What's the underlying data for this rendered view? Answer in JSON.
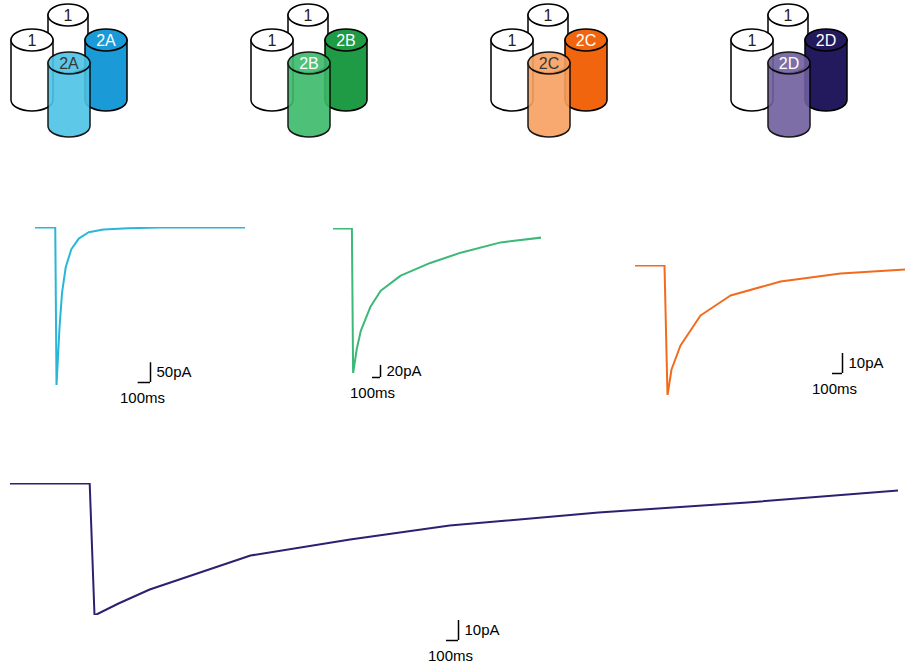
{
  "receptors": [
    {
      "subunits": [
        {
          "label": "1",
          "color": "#ffffff"
        },
        {
          "label": "1",
          "color": "#ffffff"
        },
        {
          "label": "2A",
          "color": "#1a9ad6"
        },
        {
          "label": "2A",
          "color": "#4cc3e6"
        }
      ]
    },
    {
      "subunits": [
        {
          "label": "1",
          "color": "#ffffff"
        },
        {
          "label": "1",
          "color": "#ffffff"
        },
        {
          "label": "2B",
          "color": "#1f9a45"
        },
        {
          "label": "2B",
          "color": "#3dba6a"
        }
      ]
    },
    {
      "subunits": [
        {
          "label": "1",
          "color": "#ffffff"
        },
        {
          "label": "1",
          "color": "#ffffff"
        },
        {
          "label": "2C",
          "color": "#f2650f"
        },
        {
          "label": "2C",
          "color": "#f7a061"
        }
      ]
    },
    {
      "subunits": [
        {
          "label": "1",
          "color": "#ffffff"
        },
        {
          "label": "1",
          "color": "#ffffff"
        },
        {
          "label": "2D",
          "color": "#221a5c"
        },
        {
          "label": "2D",
          "color": "#6f5f9e"
        }
      ]
    }
  ],
  "chart_data": [
    {
      "type": "line",
      "color": "#29b6d8",
      "tick_labels": false,
      "x": [
        0,
        160,
        170,
        180,
        195,
        215,
        245,
        290,
        350,
        430,
        550,
        750,
        1000,
        1700
      ],
      "values": [
        0,
        0,
        -400,
        -340,
        -250,
        -165,
        -100,
        -55,
        -28,
        -12,
        -5,
        -2,
        0,
        0
      ],
      "xlim": [
        0,
        1700
      ],
      "ylim": [
        -400,
        0
      ],
      "scale_bar": {
        "x": 100,
        "x_label": "100ms",
        "y": 50,
        "y_label": "50pA"
      }
    },
    {
      "type": "line",
      "color": "#3cb878",
      "tick_labels": false,
      "x": [
        0,
        230,
        245,
        290,
        340,
        460,
        590,
        840,
        1210,
        1590,
        2090,
        2600
      ],
      "values": [
        0,
        0,
        -240,
        -200,
        -170,
        -130,
        -103,
        -78,
        -57,
        -40,
        -23,
        -15
      ],
      "xlim": [
        0,
        2600
      ],
      "ylim": [
        -240,
        0
      ],
      "scale_bar": {
        "x": 100,
        "x_label": "100ms",
        "y": 20,
        "y_label": "20pA"
      }
    },
    {
      "type": "line",
      "color": "#f26b1d",
      "tick_labels": false,
      "x": [
        0,
        290,
        320,
        360,
        450,
        650,
        950,
        1450,
        2050,
        2700
      ],
      "values": [
        0,
        0,
        -65,
        -52,
        -40,
        -25,
        -15,
        -8,
        -4,
        -2
      ],
      "xlim": [
        0,
        2700
      ],
      "ylim": [
        -65,
        0
      ],
      "scale_bar": {
        "x": 100,
        "x_label": "100ms",
        "y": 10,
        "y_label": "10pA"
      }
    },
    {
      "type": "line",
      "color": "#2b2170",
      "tick_labels": false,
      "x": [
        0,
        660,
        700,
        900,
        1160,
        2000,
        2830,
        3660,
        4900,
        6140,
        7400
      ],
      "values": [
        0,
        0,
        -66,
        -60,
        -53,
        -36,
        -28,
        -21,
        -14.5,
        -9.5,
        -3.5
      ],
      "xlim": [
        0,
        7400
      ],
      "ylim": [
        -66,
        0
      ],
      "scale_bar": {
        "x": 100,
        "x_label": "100ms",
        "y": 10,
        "y_label": "10pA"
      }
    }
  ]
}
